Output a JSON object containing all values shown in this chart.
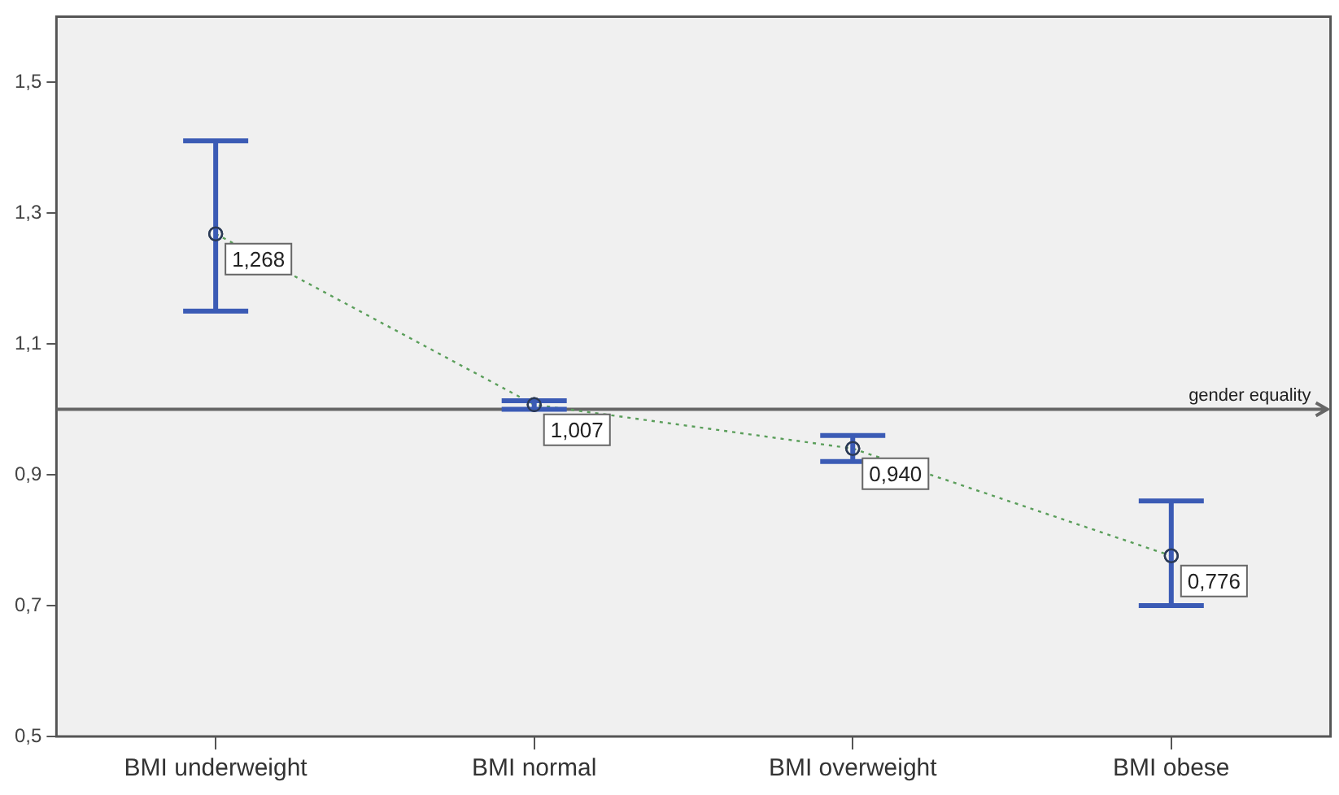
{
  "chart_data": {
    "type": "line",
    "categories": [
      "BMI underweight",
      "BMI normal",
      "BMI overweight",
      "BMI obese"
    ],
    "series": [
      {
        "color": "#5a9e5a",
        "values": [
          1.268,
          1.007,
          0.94,
          0.776
        ],
        "errors": [
          [
            1.15,
            1.41
          ],
          [
            1.0,
            1.013
          ],
          [
            0.92,
            0.96
          ],
          [
            0.7,
            0.86
          ]
        ],
        "value_labels": [
          "1,268",
          "1,007",
          "0,940",
          "0,776"
        ]
      }
    ],
    "ylim": [
      0.5,
      1.6
    ],
    "yticks": [
      {
        "value": 0.5,
        "label": "0,5"
      },
      {
        "value": 0.7,
        "label": "0,7"
      },
      {
        "value": 0.9,
        "label": "0,9"
      },
      {
        "value": 1.1,
        "label": "1,1"
      },
      {
        "value": 1.3,
        "label": "1,3"
      },
      {
        "value": 1.5,
        "label": "1,5"
      }
    ],
    "ref_lines": [
      {
        "axis": "y",
        "value": 1.0,
        "label": "gender equality",
        "color": "#666666"
      }
    ],
    "grid": false,
    "legend": false,
    "marker": "circle",
    "line_style": "dotted"
  }
}
